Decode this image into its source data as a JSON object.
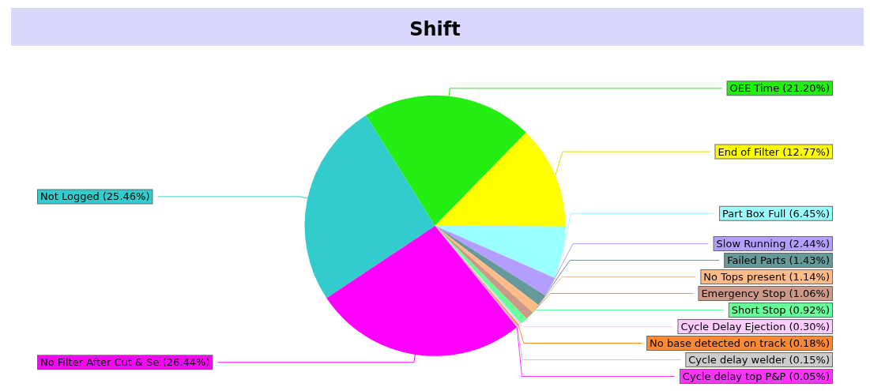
{
  "chart_data": {
    "type": "pie",
    "title": "Shift",
    "categories": [
      "OEE Time",
      "End of Filter",
      "Part Box Full",
      "Slow Running",
      "Failed Parts",
      "No Tops present",
      "Emergency Stop",
      "Short Stop",
      "Cycle Delay Ejection",
      "No base detected on track",
      "Cycle delay welder",
      "Cycle delay top P&P",
      "No Filter After Cut & Se",
      "Not Logged"
    ],
    "values": [
      21.2,
      12.77,
      6.45,
      2.44,
      1.43,
      1.14,
      1.06,
      0.92,
      0.3,
      0.18,
      0.15,
      0.05,
      26.44,
      25.46
    ],
    "value_labels": [
      "(21.20%)",
      "(12.77%)",
      "(6.45%)",
      "(2.44%)",
      "(1.43%)",
      "(1.14%)",
      "(1.06%)",
      "(0.92%)",
      "(0.30%)",
      "(0.18%)",
      "(0.15%)",
      "(0.05%)",
      "(26.44%)",
      "(25.46%)"
    ],
    "colors": [
      "#22ee11",
      "#ffff00",
      "#99ffff",
      "#b39dff",
      "#669999",
      "#ffbb88",
      "#cc9988",
      "#66ff99",
      "#ffccff",
      "#ff8833",
      "#cccccc",
      "#ff33ff",
      "#ff00ff",
      "#33cccc"
    ]
  }
}
